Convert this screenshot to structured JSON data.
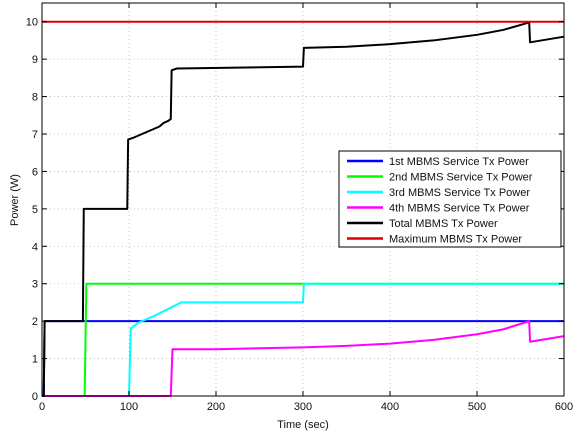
{
  "chart_data": {
    "type": "line",
    "xlabel": "Time (sec)",
    "ylabel": "Power (W)",
    "xlim": [
      0,
      600
    ],
    "ylim": [
      0,
      10.5
    ],
    "xticks": [
      0,
      100,
      200,
      300,
      400,
      500,
      600
    ],
    "yticks": [
      0,
      1,
      2,
      3,
      4,
      5,
      6,
      7,
      8,
      9,
      10
    ],
    "grid": true,
    "legend_position": "right",
    "series": [
      {
        "name": "1st MBMS Service Tx Power",
        "color": "#0000ff",
        "x": [
          0,
          2,
          3,
          600
        ],
        "y": [
          0,
          0,
          2,
          2
        ]
      },
      {
        "name": "2nd MBMS Service Tx Power",
        "color": "#00ff00",
        "x": [
          0,
          49,
          51,
          600
        ],
        "y": [
          0,
          0,
          3,
          3
        ]
      },
      {
        "name": "3rd MBMS Service Tx Power",
        "color": "#00ffff",
        "x": [
          0,
          100,
          102,
          110,
          130,
          160,
          300,
          301,
          600
        ],
        "y": [
          0,
          0,
          1.8,
          1.95,
          2.15,
          2.5,
          2.5,
          3,
          3
        ]
      },
      {
        "name": "4th MBMS Service Tx Power",
        "color": "#ff00ff",
        "x": [
          0,
          148,
          150,
          200,
          300,
          350,
          400,
          450,
          500,
          530,
          560,
          561,
          600
        ],
        "y": [
          0,
          0,
          1.25,
          1.25,
          1.3,
          1.34,
          1.4,
          1.5,
          1.65,
          1.78,
          2,
          1.45,
          1.6
        ]
      },
      {
        "name": "Total MBMS Tx Power",
        "color": "#000000",
        "x": [
          0,
          2,
          3,
          47,
          48,
          98,
          99,
          105,
          110,
          115,
          120,
          125,
          130,
          135,
          140,
          145,
          148,
          149,
          155,
          300,
          301,
          350,
          400,
          450,
          500,
          530,
          560,
          561,
          600
        ],
        "y": [
          0,
          0,
          2,
          2,
          5,
          5,
          6.85,
          6.9,
          6.95,
          7.0,
          7.05,
          7.1,
          7.15,
          7.2,
          7.3,
          7.35,
          7.4,
          8.7,
          8.75,
          8.8,
          9.3,
          9.33,
          9.4,
          9.5,
          9.65,
          9.78,
          9.98,
          9.45,
          9.6
        ]
      },
      {
        "name": "Maximum MBMS Tx Power",
        "color": "#dd0000",
        "x": [
          0,
          600
        ],
        "y": [
          10,
          10
        ]
      }
    ]
  }
}
